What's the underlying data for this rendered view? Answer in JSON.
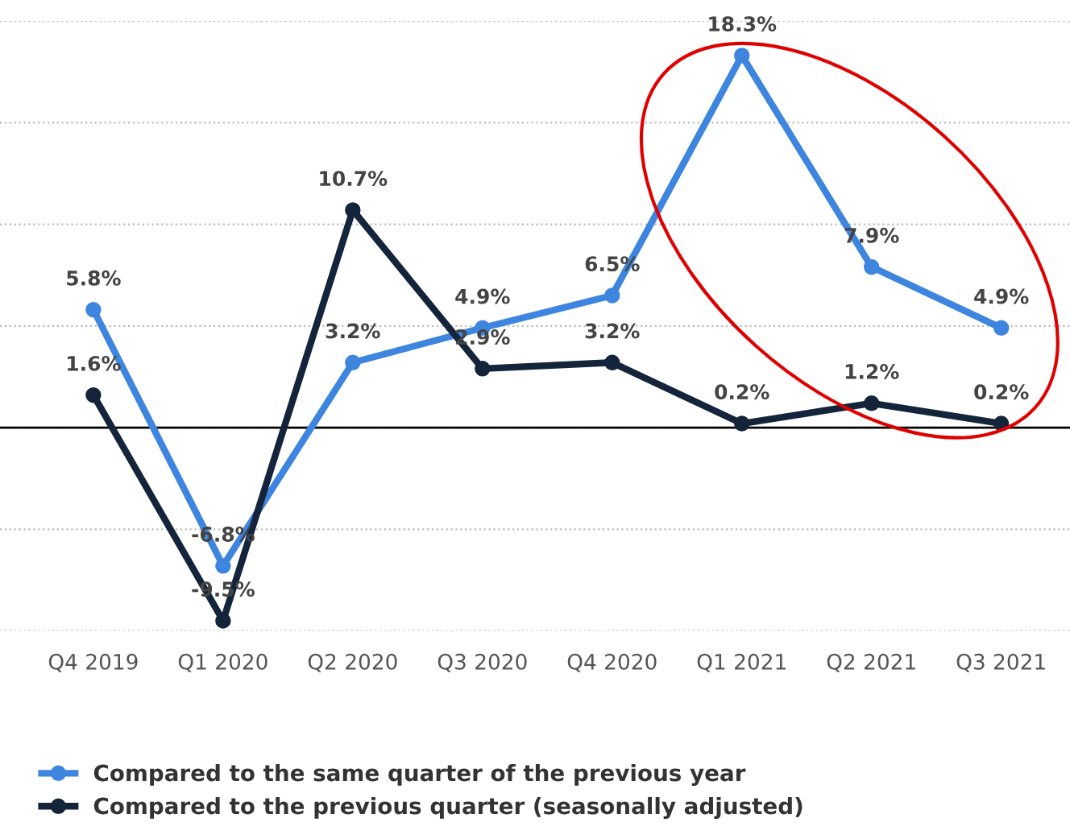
{
  "chart_data": {
    "type": "line",
    "categories": [
      "Q4 2019",
      "Q1 2020",
      "Q2 2020",
      "Q3 2020",
      "Q4 2020",
      "Q1 2021",
      "Q2 2021",
      "Q3 2021"
    ],
    "series": [
      {
        "name": "Compared to the same quarter of the previous year",
        "color": "#3d85de",
        "values": [
          5.8,
          -6.8,
          3.2,
          4.9,
          6.5,
          18.3,
          7.9,
          4.9
        ],
        "value_labels": [
          "5.8%",
          "-6.8%",
          "3.2%",
          "4.9%",
          "6.5%",
          "18.3%",
          "7.9%",
          "4.9%"
        ]
      },
      {
        "name": "Compared to the previous quarter (seasonally adjusted)",
        "color": "#14243a",
        "values": [
          1.6,
          -9.5,
          10.7,
          2.9,
          3.2,
          0.2,
          1.2,
          0.2
        ],
        "value_labels": [
          "1.6%",
          "-9.5%",
          "10.7%",
          "2.9%",
          "3.2%",
          "0.2%",
          "1.2%",
          "0.2%"
        ]
      }
    ],
    "ylim": [
      -10,
      20
    ],
    "yticks": [
      {
        "value": -10,
        "label": null
      },
      {
        "value": -5,
        "label": null
      },
      {
        "value": 0,
        "label": null
      },
      {
        "value": 5,
        "label": null
      },
      {
        "value": 10,
        "label": null
      },
      {
        "value": 15,
        "label": null
      },
      {
        "value": 20,
        "label": null
      }
    ],
    "tick_labels": "x",
    "ref_lines": [
      {
        "axis": "y",
        "value": 0,
        "label": null,
        "color": "#000000"
      }
    ],
    "grid": "y",
    "legend": "bottom",
    "marker": "circle",
    "line_style": "solid"
  }
}
